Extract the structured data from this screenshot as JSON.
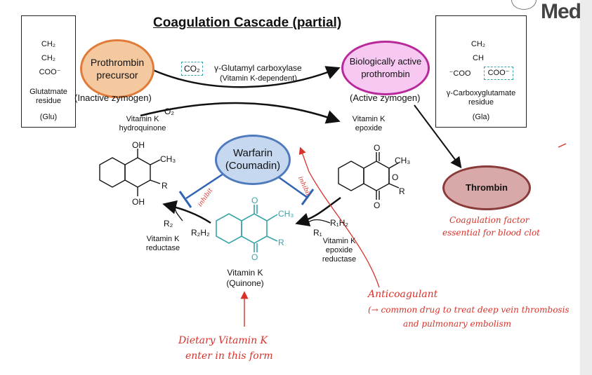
{
  "title": "Coagulation Cascade (partial)",
  "logo_text": "Med",
  "glu_box": {
    "chem_lines": [
      "CH₂",
      "CH₂",
      "COO⁻"
    ],
    "name": "Glutatmate residue",
    "abbr": "(Glu)"
  },
  "gla_box": {
    "chem_top": [
      "CH₂",
      "CH"
    ],
    "coo_left": "⁻COO",
    "coo_right": "COO⁻",
    "name": "γ-Carboxyglutamate residue",
    "abbr": "(Gla)"
  },
  "prothrombin_precursor": {
    "label": "Prothrombin precursor",
    "state": "(Inactive zymogen)"
  },
  "active_prothrombin": {
    "label": "Biologically active prothrombin",
    "state": "(Active zymogen)"
  },
  "co2": "CO₂",
  "enzyme": {
    "name": "γ-Glutamyl carboxylase",
    "note": "(Vitamin K-dependent)"
  },
  "o2": "O₂",
  "hydroquinone": "Vitamin K hydroquinone",
  "epoxide": "Vitamin K epoxide",
  "warfarin": "Warfarin (Coumadin)",
  "thrombin": "Thrombin",
  "quinone": "Vitamin K (Quinone)",
  "reductase": "Vitamin K reductase",
  "epoxide_reductase": "Vitamin K epoxide reductase",
  "chem": {
    "OH": "OH",
    "CH3": "CH₃",
    "R": "R",
    "O": "O",
    "R2": "R₂",
    "R2H2": "R₂H₂",
    "R1": "R₁",
    "R1H2": "R₁H₂"
  },
  "handwriting": {
    "inhibit_left": "inhibit",
    "inhibit_right": "inhibit",
    "thrombin_note": [
      "Coagulation factor",
      "essential for blood clot"
    ],
    "anticoagulant": [
      "Anticoagulant",
      "(→ common drug to treat deep vein thrombosis",
      "and pulmonary embolism"
    ],
    "dietary": [
      "Dietary Vitamin K",
      "enter in this form"
    ]
  },
  "colors": {
    "precursor_fill": "#f5c9a0",
    "precursor_border": "#e07b39",
    "active_fill": "#f7c9f2",
    "active_border": "#b8299b",
    "warfarin_fill": "#c5d8f0",
    "warfarin_border": "#4f7bbd",
    "thrombin_fill": "#d9a8a8",
    "thrombin_border": "#8b3a3a",
    "teal": "#3aa3a8",
    "ink": "#d8322a"
  }
}
